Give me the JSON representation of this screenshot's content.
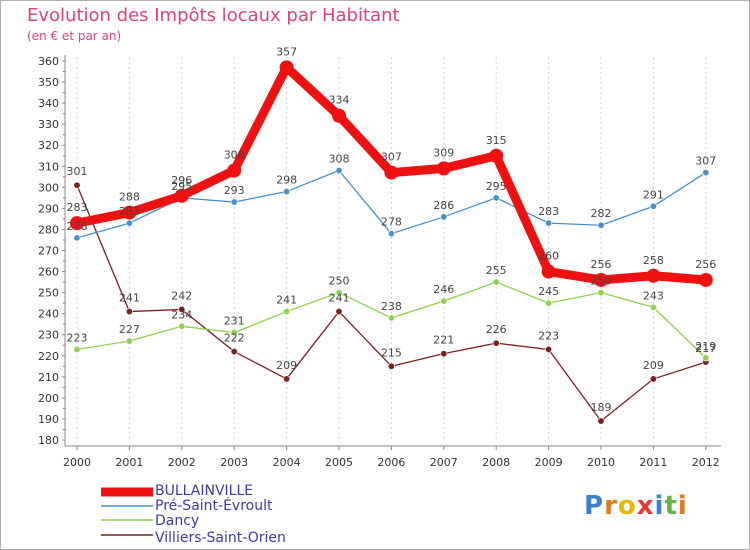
{
  "chart_data": {
    "type": "line",
    "title": "Evolution des Impôts locaux par Habitant",
    "subtitle": "(en € et par an)",
    "x": [
      "2000",
      "2001",
      "2002",
      "2003",
      "2004",
      "2005",
      "2006",
      "2007",
      "2008",
      "2009",
      "2010",
      "2011",
      "2012"
    ],
    "ylim": [
      180,
      360
    ],
    "yticks": [
      180,
      190,
      200,
      210,
      220,
      230,
      240,
      250,
      260,
      270,
      280,
      290,
      300,
      310,
      320,
      330,
      340,
      350,
      360
    ],
    "grid": "vertical",
    "series": [
      {
        "name": "BULLAINVILLE",
        "color": "#ee1111",
        "values": [
          283,
          288,
          296,
          308,
          357,
          334,
          307,
          309,
          315,
          260,
          256,
          258,
          256
        ]
      },
      {
        "name": "Pré-Saint-Évroult",
        "color": "#4a90c8",
        "values": [
          276,
          283,
          295,
          293,
          298,
          308,
          278,
          286,
          295,
          283,
          282,
          291,
          307
        ]
      },
      {
        "name": "Dancy",
        "color": "#8fd14f",
        "values": [
          223,
          227,
          234,
          231,
          241,
          250,
          238,
          246,
          255,
          245,
          250,
          243,
          219
        ]
      },
      {
        "name": "Villiers-Saint-Orien",
        "color": "#7a2020",
        "values": [
          301,
          241,
          242,
          222,
          209,
          241,
          215,
          221,
          226,
          223,
          189,
          209,
          217
        ]
      }
    ]
  },
  "legend": {
    "items": [
      "BULLAINVILLE",
      "Pré-Saint-Évroult",
      "Dancy",
      "Villiers-Saint-Orien"
    ]
  },
  "logo": {
    "letters": [
      "P",
      "r",
      "o",
      "x",
      "i",
      "t",
      "i"
    ],
    "colors": [
      "#3a7fd0",
      "#e87722",
      "#e6b800",
      "#e53935",
      "#3a7fd0",
      "#6ab04c",
      "#e87722"
    ]
  }
}
